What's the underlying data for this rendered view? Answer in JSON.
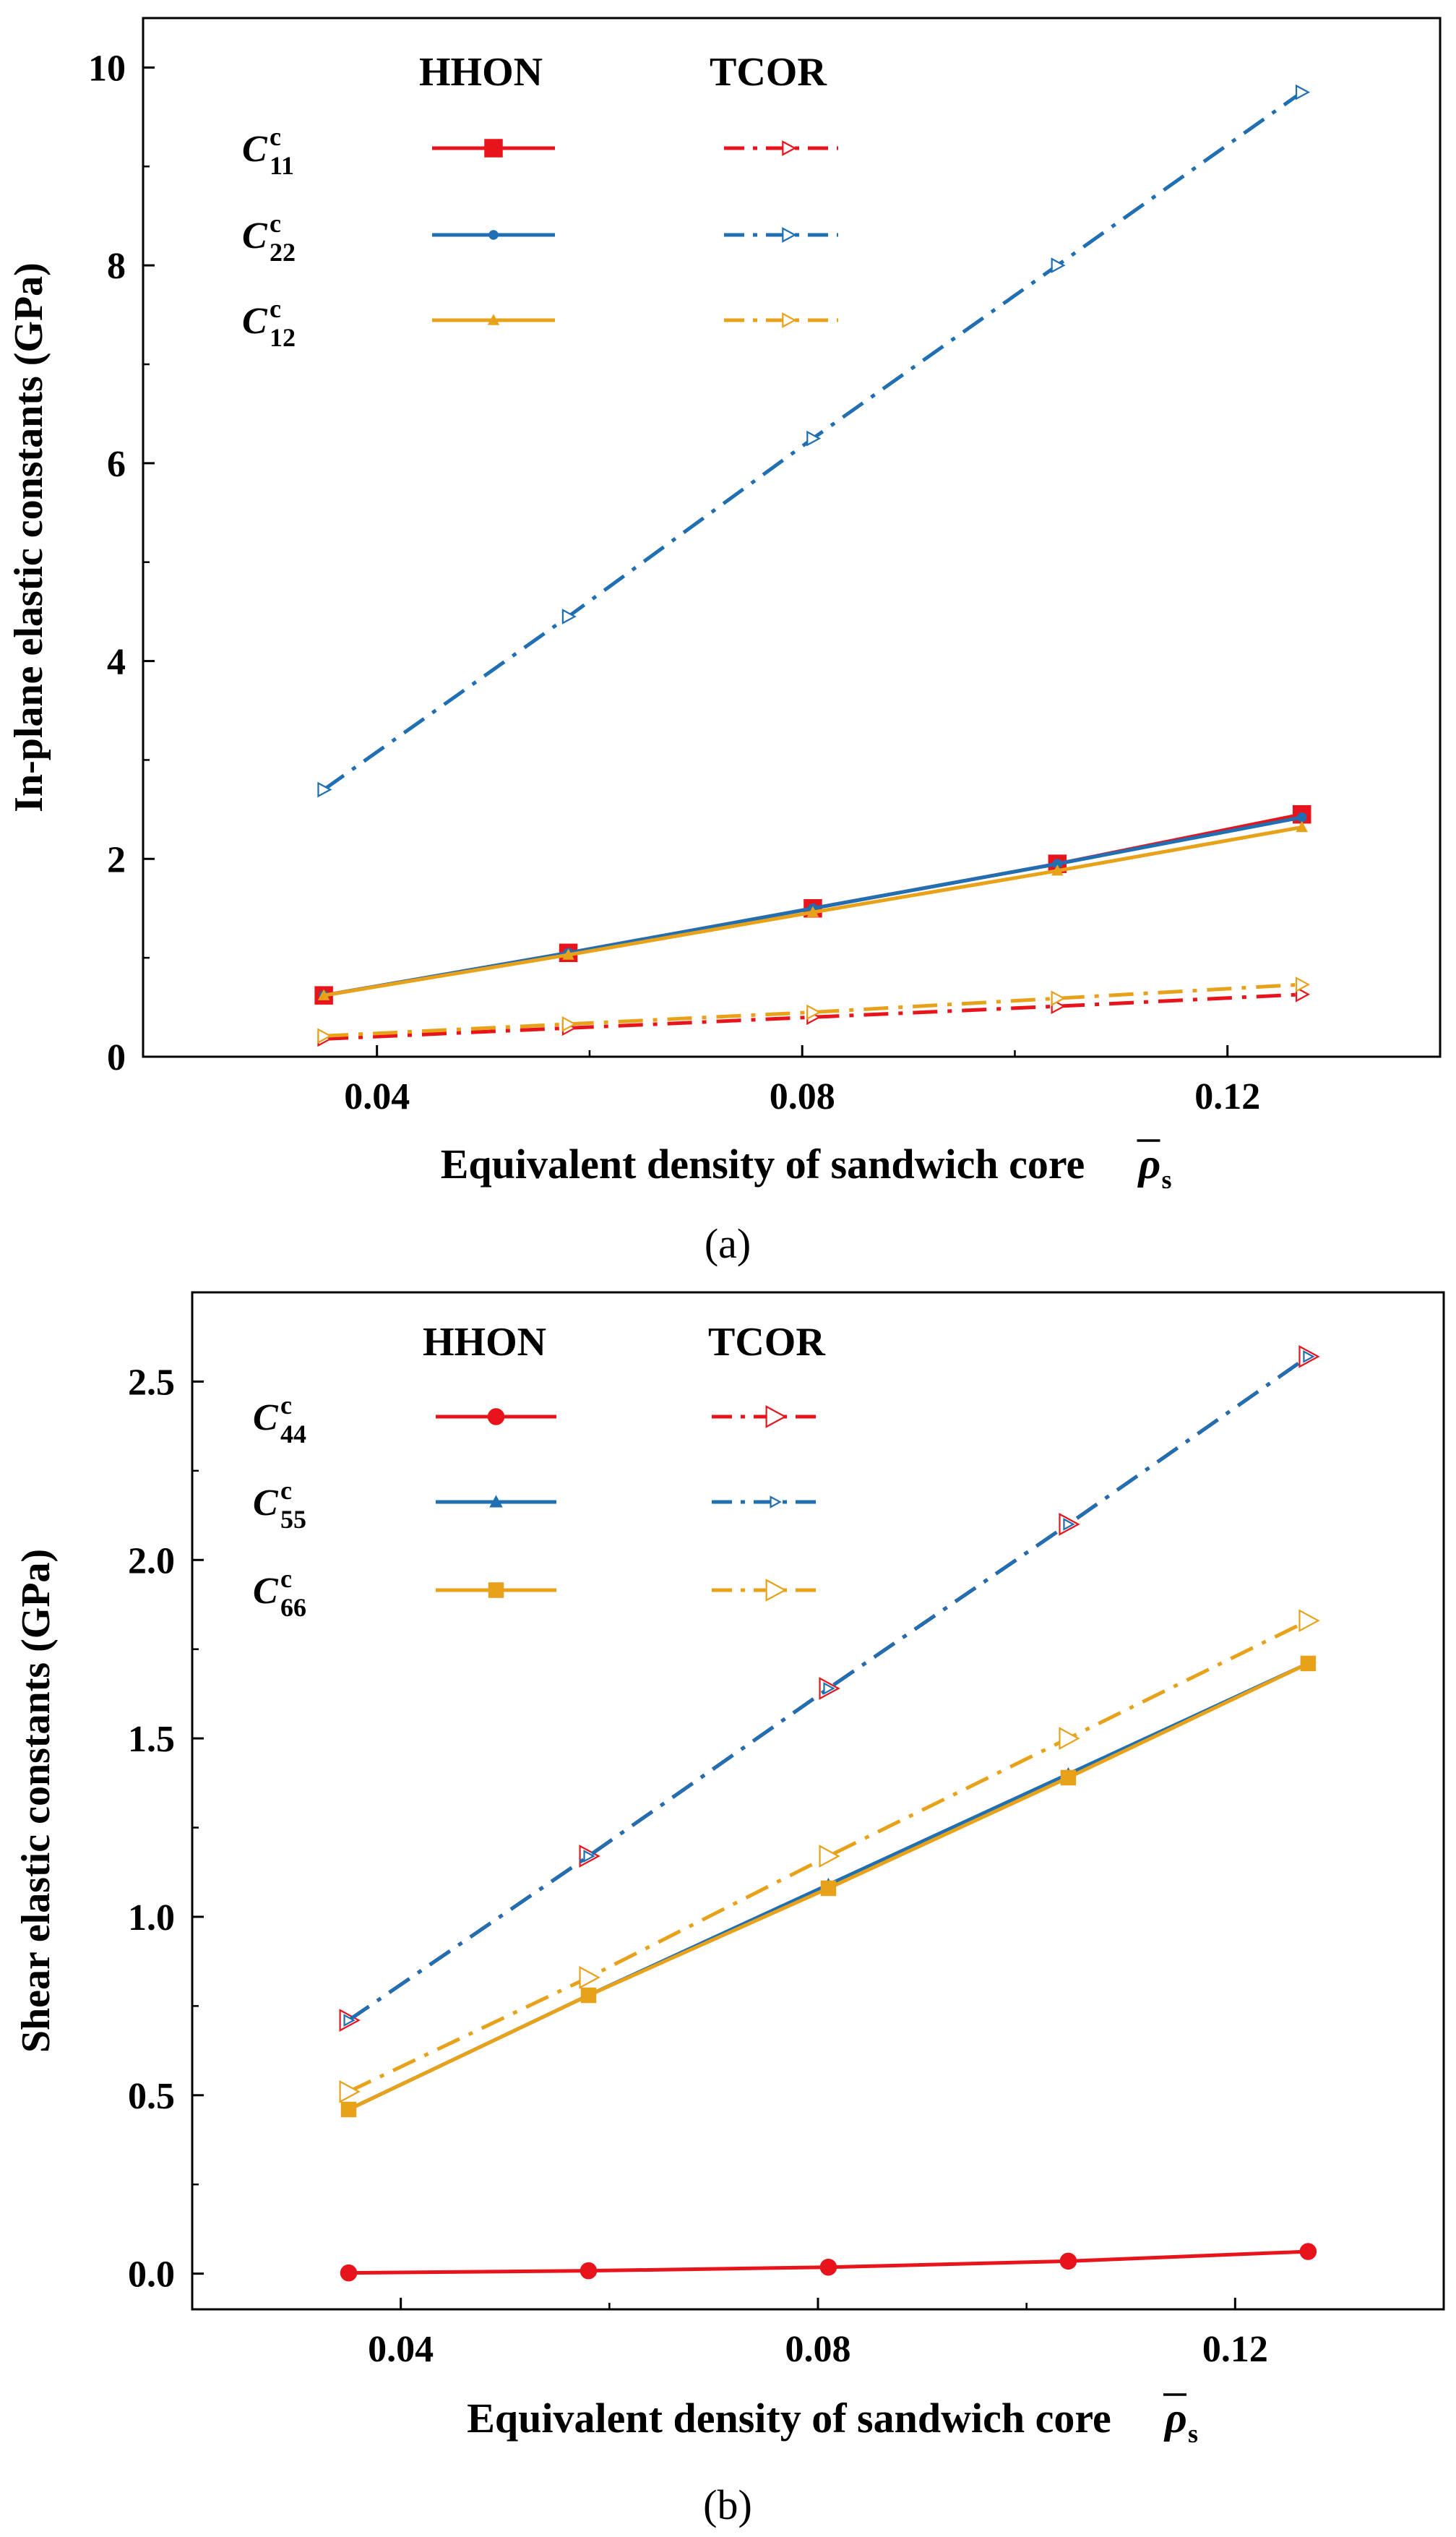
{
  "chart_data": [
    {
      "type": "line",
      "panel_label": "(a)",
      "title": "",
      "xlabel": "Equivalent density of sandwich core",
      "xlabel_symbol": "ρ",
      "xlabel_symbol_sub": "s",
      "ylabel": "In-plane elastic constants (GPa)",
      "xlim": [
        0.018,
        0.14
      ],
      "ylim": [
        0,
        10.5
      ],
      "xticks": [
        0.04,
        0.08,
        0.12
      ],
      "xtick_labels": [
        "0.04",
        "0.08",
        "0.12"
      ],
      "yticks": [
        0,
        2,
        4,
        6,
        8,
        10
      ],
      "ytick_labels": [
        "0",
        "2",
        "4",
        "6",
        "8",
        "10"
      ],
      "x": [
        0.035,
        0.058,
        0.081,
        0.104,
        0.127
      ],
      "legend_headers": [
        "HHON",
        "TCOR"
      ],
      "legend_position": "top-left",
      "rows": [
        {
          "label_main": "C",
          "label_sup": "c",
          "label_sub": "11",
          "hhon": {
            "name": "HHON C11",
            "color": "#e8141c",
            "marker": "square",
            "marker_size": 12,
            "filled": true,
            "values": [
              0.62,
              1.05,
              1.5,
              1.95,
              2.45
            ]
          },
          "tcor": {
            "name": "TCOR C11",
            "color": "#e8141c",
            "marker": "triangle-right",
            "marker_size": 9,
            "filled": false,
            "values": [
              0.18,
              0.29,
              0.4,
              0.51,
              0.63
            ]
          }
        },
        {
          "label_main": "C",
          "label_sup": "c",
          "label_sub": "22",
          "hhon": {
            "name": "HHON C22",
            "color": "#1f6fb2",
            "marker": "circle",
            "marker_size": 6,
            "filled": true,
            "values": [
              0.62,
              1.05,
              1.5,
              1.95,
              2.42
            ]
          },
          "tcor": {
            "name": "TCOR C22",
            "color": "#1f6fb2",
            "marker": "triangle-right",
            "marker_size": 9,
            "filled": false,
            "values": [
              2.7,
              4.45,
              6.25,
              8.0,
              9.75
            ]
          }
        },
        {
          "label_main": "C",
          "label_sup": "c",
          "label_sub": "12",
          "hhon": {
            "name": "HHON C12",
            "color": "#e8a21a",
            "marker": "triangle-up",
            "marker_size": 7,
            "filled": true,
            "values": [
              0.62,
              1.03,
              1.46,
              1.88,
              2.32
            ]
          },
          "tcor": {
            "name": "TCOR C12",
            "color": "#e8a21a",
            "marker": "triangle-right",
            "marker_size": 9,
            "filled": false,
            "values": [
              0.21,
              0.33,
              0.45,
              0.59,
              0.73
            ]
          }
        }
      ]
    },
    {
      "type": "line",
      "panel_label": "(b)",
      "title": "",
      "xlabel": "Equivalent density of sandwich core",
      "xlabel_symbol": "ρ",
      "xlabel_symbol_sub": "s",
      "ylabel": "Shear elastic constants (GPa)",
      "xlim": [
        0.02,
        0.14
      ],
      "ylim": [
        -0.1,
        2.75
      ],
      "xticks": [
        0.04,
        0.08,
        0.12
      ],
      "xtick_labels": [
        "0.04",
        "0.08",
        "0.12"
      ],
      "yticks": [
        0,
        0.5,
        1.0,
        1.5,
        2.0,
        2.5
      ],
      "ytick_labels": [
        "0.0",
        "0.5",
        "1.0",
        "1.5",
        "2.0",
        "2.5"
      ],
      "x": [
        0.035,
        0.058,
        0.081,
        0.104,
        0.127
      ],
      "legend_headers": [
        "HHON",
        "TCOR"
      ],
      "legend_position": "top-left",
      "rows": [
        {
          "label_main": "C",
          "label_sup": "c",
          "label_sub": "44",
          "hhon": {
            "name": "HHON C44",
            "color": "#e8141c",
            "marker": "circle",
            "marker_size": 11,
            "filled": true,
            "values": [
              0.002,
              0.008,
              0.018,
              0.035,
              0.062
            ]
          },
          "tcor": {
            "name": "TCOR C44",
            "color": "#e8141c",
            "marker": "triangle-right",
            "marker_size": 14,
            "filled": false,
            "values": [
              0.71,
              1.17,
              1.64,
              2.1,
              2.57
            ]
          }
        },
        {
          "label_main": "C",
          "label_sup": "c",
          "label_sub": "55",
          "hhon": {
            "name": "HHON C55",
            "color": "#1f6fb2",
            "marker": "triangle-up",
            "marker_size": 8,
            "filled": true,
            "values": [
              0.46,
              0.78,
              1.09,
              1.4,
              1.71
            ]
          },
          "tcor": {
            "name": "TCOR C55",
            "color": "#1f6fb2",
            "marker": "triangle-right",
            "marker_size": 7,
            "filled": false,
            "values": [
              0.71,
              1.17,
              1.64,
              2.1,
              2.57
            ]
          }
        },
        {
          "label_main": "C",
          "label_sup": "c",
          "label_sub": "66",
          "hhon": {
            "name": "HHON C66",
            "color": "#e8a21a",
            "marker": "square",
            "marker_size": 10,
            "filled": true,
            "values": [
              0.46,
              0.78,
              1.08,
              1.39,
              1.71
            ]
          },
          "tcor": {
            "name": "TCOR C66",
            "color": "#e8a21a",
            "marker": "triangle-right",
            "marker_size": 14,
            "filled": false,
            "values": [
              0.51,
              0.83,
              1.17,
              1.5,
              1.83
            ]
          }
        }
      ]
    }
  ]
}
